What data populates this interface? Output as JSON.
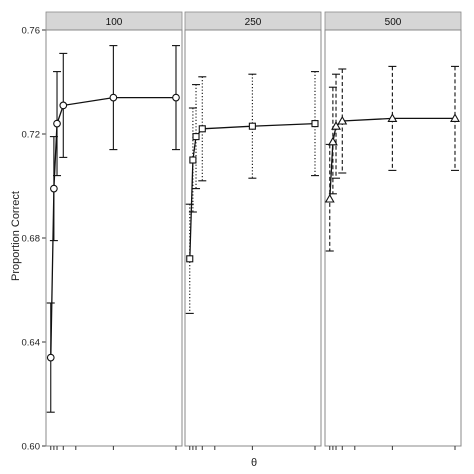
{
  "chart_data": {
    "type": "line",
    "ylabel": "Proportion Correct",
    "xlabel": "θ",
    "ylim": [
      0.6,
      0.76
    ],
    "yticks": [
      0.6,
      0.64,
      0.68,
      0.72,
      0.76
    ],
    "ytick_labels": [
      "0.60",
      "0.64",
      "0.68",
      "0.72",
      "0.76"
    ],
    "xlim": [
      -0.3,
      10.4
    ],
    "xticks": [
      0,
      0.25,
      0.5,
      1,
      2,
      5,
      10
    ],
    "grid": false,
    "panels": [
      {
        "strip": "100",
        "marker": "circle",
        "errorbar_style": "solid",
        "x": [
          0,
          0.25,
          0.5,
          1,
          5,
          10
        ],
        "y": [
          0.634,
          0.699,
          0.724,
          0.731,
          0.734,
          0.734
        ],
        "lower": [
          0.613,
          0.679,
          0.704,
          0.711,
          0.714,
          0.714
        ],
        "upper": [
          0.655,
          0.719,
          0.744,
          0.751,
          0.754,
          0.754
        ]
      },
      {
        "strip": "250",
        "marker": "square",
        "errorbar_style": "dotted",
        "x": [
          0,
          0.25,
          0.5,
          1,
          5,
          10
        ],
        "y": [
          0.672,
          0.71,
          0.719,
          0.722,
          0.723,
          0.724
        ],
        "lower": [
          0.651,
          0.69,
          0.699,
          0.702,
          0.703,
          0.704
        ],
        "upper": [
          0.693,
          0.73,
          0.739,
          0.742,
          0.743,
          0.744
        ]
      },
      {
        "strip": "500",
        "marker": "triangle",
        "errorbar_style": "dashed",
        "x": [
          0,
          0.25,
          0.5,
          1,
          5,
          10
        ],
        "y": [
          0.695,
          0.717,
          0.723,
          0.725,
          0.726,
          0.726
        ],
        "lower": [
          0.675,
          0.697,
          0.703,
          0.705,
          0.706,
          0.706
        ],
        "upper": [
          0.716,
          0.738,
          0.743,
          0.745,
          0.746,
          0.746
        ]
      }
    ]
  }
}
